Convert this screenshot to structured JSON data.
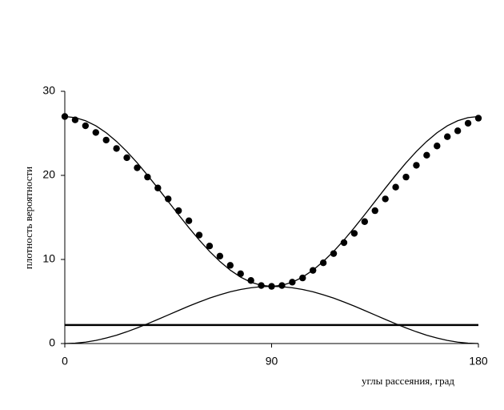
{
  "chart_data": {
    "type": "line",
    "x_label": "углы рассеяния, град",
    "y_label": "плотность вероятности",
    "xlim": [
      0,
      180
    ],
    "xticks": [
      0,
      90,
      180
    ],
    "ylim": [
      0,
      30
    ],
    "yticks": [
      0,
      10,
      20,
      30
    ],
    "grid": false,
    "series": [
      {
        "color": "#000000",
        "marker": true,
        "line": false,
        "x": [
          0,
          4.5,
          9,
          13.5,
          18,
          22.5,
          27,
          31.5,
          36,
          40.5,
          45,
          49.5,
          54,
          58.5,
          63,
          67.5,
          72,
          76.5,
          81,
          85.5,
          90,
          94.5,
          99,
          103.5,
          108,
          112.5,
          117,
          121.5,
          126,
          130.5,
          135,
          139.5,
          144,
          148.5,
          153,
          157.5,
          162,
          166.5,
          171,
          175.5,
          180
        ],
        "values": [
          27.0,
          26.6,
          25.9,
          25.1,
          24.2,
          23.2,
          22.1,
          20.9,
          19.8,
          18.5,
          17.2,
          15.8,
          14.6,
          12.9,
          11.6,
          10.4,
          9.3,
          8.3,
          7.5,
          6.9,
          6.8,
          6.9,
          7.3,
          7.8,
          8.7,
          9.6,
          10.7,
          12.0,
          13.1,
          14.5,
          15.8,
          17.2,
          18.6,
          19.8,
          21.2,
          22.4,
          23.5,
          24.6,
          25.3,
          26.2,
          26.8
        ]
      },
      {
        "color": "#000000",
        "marker": false,
        "line": true,
        "x": [
          0,
          4.5,
          9,
          13.5,
          18,
          22.5,
          27,
          31.5,
          36,
          40.5,
          45,
          49.5,
          54,
          58.5,
          63,
          67.5,
          72,
          76.5,
          81,
          85.5,
          90,
          94.5,
          99,
          103.5,
          108,
          112.5,
          117,
          121.5,
          126,
          130.5,
          135,
          139.5,
          144,
          148.5,
          153,
          157.5,
          162,
          166.5,
          171,
          175.5,
          180
        ],
        "values": [
          27.0,
          26.87,
          26.5,
          25.9,
          25.07,
          24.04,
          22.84,
          21.49,
          20.02,
          18.48,
          16.9,
          15.32,
          13.78,
          12.31,
          10.96,
          9.76,
          8.73,
          7.9,
          7.29,
          6.93,
          6.8,
          6.93,
          7.29,
          7.9,
          8.73,
          9.76,
          10.96,
          12.31,
          13.78,
          15.32,
          16.9,
          18.48,
          20.02,
          21.49,
          22.84,
          24.04,
          25.07,
          25.9,
          26.5,
          26.87,
          27.0
        ]
      },
      {
        "color": "#000000",
        "marker": false,
        "line": true,
        "x": [
          0,
          4.5,
          9,
          13.5,
          18,
          22.5,
          27,
          31.5,
          36,
          40.5,
          45,
          49.5,
          54,
          58.5,
          63,
          67.5,
          72,
          76.5,
          81,
          85.5,
          90,
          94.5,
          99,
          103.5,
          108,
          112.5,
          117,
          121.5,
          126,
          130.5,
          135,
          139.5,
          144,
          148.5,
          153,
          157.5,
          162,
          166.5,
          171,
          175.5,
          180
        ],
        "values": [
          0,
          0.04,
          0.17,
          0.37,
          0.65,
          0.99,
          1.4,
          1.86,
          2.35,
          2.87,
          3.4,
          3.93,
          4.45,
          4.94,
          5.4,
          5.8,
          6.15,
          6.43,
          6.63,
          6.76,
          6.8,
          6.76,
          6.63,
          6.43,
          6.15,
          5.8,
          5.4,
          4.94,
          4.45,
          3.93,
          3.4,
          2.87,
          2.35,
          1.86,
          1.4,
          0.99,
          0.65,
          0.37,
          0.17,
          0.04,
          0
        ]
      },
      {
        "color": "#000000",
        "marker": false,
        "line": true,
        "width": 2.5,
        "x": [
          0,
          180
        ],
        "values": [
          2.2,
          2.2
        ]
      }
    ]
  }
}
